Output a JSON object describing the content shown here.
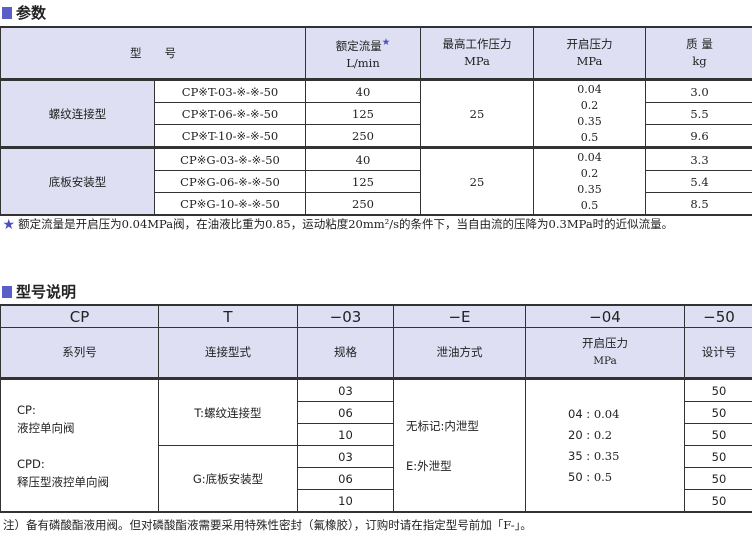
{
  "params": {
    "title": "参数",
    "headers": {
      "model": "型　　号",
      "flow": "额定流量",
      "flow_unit": "L/min",
      "max_pressure": "最高工作压力",
      "max_pressure_unit": "MPa",
      "crack": "开启压力",
      "crack_unit": "MPa",
      "mass": "质 量",
      "mass_unit": "kg"
    },
    "groups": [
      {
        "name": "螺纹连接型",
        "max_pressure": "25",
        "crack": [
          "0.04",
          "0.2",
          "0.35",
          "0.5"
        ],
        "rows": [
          {
            "model": "CP※T-03-※-※-50",
            "flow": "40",
            "mass": "3.0"
          },
          {
            "model": "CP※T-06-※-※-50",
            "flow": "125",
            "mass": "5.5"
          },
          {
            "model": "CP※T-10-※-※-50",
            "flow": "250",
            "mass": "9.6"
          }
        ]
      },
      {
        "name": "底板安装型",
        "max_pressure": "25",
        "crack": [
          "0.04",
          "0.2",
          "0.35",
          "0.5"
        ],
        "rows": [
          {
            "model": "CP※G-03-※-※-50",
            "flow": "40",
            "mass": "3.3"
          },
          {
            "model": "CP※G-06-※-※-50",
            "flow": "125",
            "mass": "5.4"
          },
          {
            "model": "CP※G-10-※-※-50",
            "flow": "250",
            "mass": "8.5"
          }
        ]
      }
    ],
    "footnote": "额定流量是开启压为0.04MPa阀，在油液比重为0.85，运动粘度20mm²/s的条件下，当自由流的压降为0.3MPa时的近似流量。"
  },
  "model_code": {
    "title": "型号说明",
    "codes": [
      "CP",
      "T",
      "−03",
      "−E",
      "−04",
      "−50"
    ],
    "labels": [
      "系列号",
      "连接型式",
      "规格",
      "泄油方式",
      "开启压力",
      "设计号"
    ],
    "crack_unit": "MPa",
    "series": [
      {
        "code": "CP:",
        "name": "液控单向阀"
      },
      {
        "code": "CPD:",
        "name": "释压型液控单向阀"
      }
    ],
    "connection": [
      {
        "code": "T:",
        "name": "螺纹连接型"
      },
      {
        "code": "G:",
        "name": "底板安装型"
      }
    ],
    "sizes": [
      "03",
      "06",
      "10",
      "03",
      "06",
      "10"
    ],
    "drain": [
      {
        "code": "无标记:",
        "name": "内泄型"
      },
      {
        "code": "E:",
        "name": "外泄型"
      }
    ],
    "crack": [
      {
        "code": "04 :",
        "value": "0.04"
      },
      {
        "code": "20 :",
        "value": "0.2"
      },
      {
        "code": "35 :",
        "value": "0.35"
      },
      {
        "code": "50 :",
        "value": "0.5"
      }
    ],
    "design": [
      "50",
      "50",
      "50",
      "50",
      "50",
      "50"
    ],
    "note": "注）备有磷酸酯液用阀。但对磷酸酯液需要采用特殊性密封（氟橡胶），订购时请在指定型号前加「F-」。"
  }
}
